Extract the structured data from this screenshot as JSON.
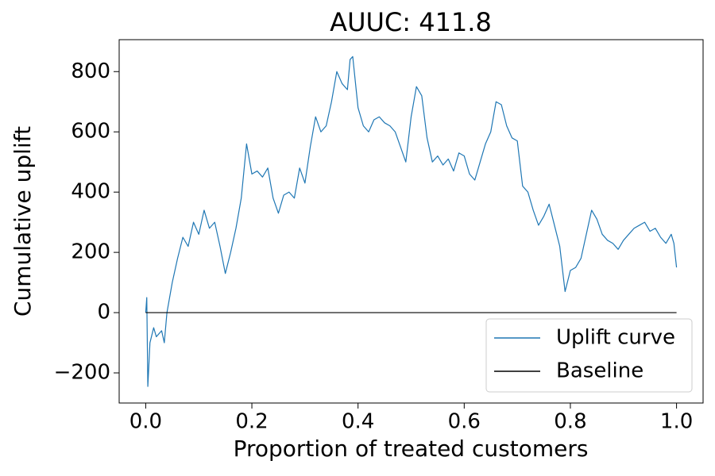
{
  "chart_data": {
    "type": "line",
    "title": "AUUC: 411.8",
    "x_label": "Proportion of treated customers",
    "y_label": "Cumulative uplift",
    "xlim": [
      -0.05,
      1.05
    ],
    "ylim": [
      -300,
      906
    ],
    "xticks": [
      {
        "value": 0,
        "label": "0.0"
      },
      0.2,
      0.4,
      0.6,
      0.8,
      {
        "value": 1,
        "label": "1.0"
      }
    ],
    "yticks": [
      {
        "value": -200,
        "label": "−200"
      },
      0,
      200,
      400,
      600,
      800
    ],
    "legend_position": "lower right",
    "grid": false,
    "series": [
      {
        "name": "Uplift curve",
        "color": "#1f77b4",
        "x": [
          0,
          0.002,
          0.004,
          0.008,
          0.015,
          0.02,
          0.03,
          0.035,
          0.04,
          0.05,
          0.06,
          0.07,
          0.08,
          0.09,
          0.1,
          0.11,
          0.12,
          0.13,
          0.14,
          0.15,
          0.16,
          0.17,
          0.18,
          0.19,
          0.2,
          0.21,
          0.22,
          0.23,
          0.24,
          0.25,
          0.26,
          0.27,
          0.28,
          0.29,
          0.3,
          0.31,
          0.32,
          0.33,
          0.34,
          0.35,
          0.36,
          0.37,
          0.38,
          0.385,
          0.39,
          0.4,
          0.41,
          0.42,
          0.43,
          0.44,
          0.45,
          0.46,
          0.47,
          0.48,
          0.49,
          0.5,
          0.51,
          0.52,
          0.53,
          0.54,
          0.55,
          0.56,
          0.57,
          0.58,
          0.59,
          0.6,
          0.61,
          0.62,
          0.63,
          0.64,
          0.65,
          0.66,
          0.67,
          0.68,
          0.69,
          0.7,
          0.71,
          0.72,
          0.73,
          0.74,
          0.75,
          0.76,
          0.77,
          0.78,
          0.79,
          0.8,
          0.81,
          0.82,
          0.83,
          0.84,
          0.85,
          0.86,
          0.87,
          0.88,
          0.89,
          0.9,
          0.91,
          0.92,
          0.93,
          0.94,
          0.95,
          0.96,
          0.97,
          0.98,
          0.99,
          0.995,
          1
        ],
        "values": [
          0,
          50,
          -245,
          -100,
          -50,
          -80,
          -60,
          -100,
          0,
          100,
          180,
          250,
          220,
          300,
          260,
          340,
          280,
          300,
          220,
          130,
          200,
          280,
          380,
          560,
          460,
          470,
          450,
          480,
          380,
          330,
          390,
          400,
          380,
          480,
          430,
          550,
          650,
          600,
          620,
          700,
          800,
          760,
          740,
          840,
          850,
          680,
          620,
          600,
          640,
          650,
          630,
          620,
          600,
          550,
          500,
          650,
          750,
          720,
          580,
          500,
          520,
          490,
          510,
          470,
          530,
          520,
          460,
          440,
          500,
          560,
          600,
          700,
          690,
          620,
          580,
          570,
          420,
          400,
          340,
          290,
          320,
          360,
          290,
          220,
          70,
          140,
          150,
          180,
          260,
          340,
          310,
          260,
          240,
          230,
          210,
          240,
          260,
          280,
          290,
          300,
          270,
          280,
          250,
          230,
          260,
          230,
          150
        ]
      },
      {
        "name": "Baseline",
        "color": "#000000",
        "x": [
          0,
          1
        ],
        "values": [
          0,
          0
        ]
      }
    ]
  }
}
